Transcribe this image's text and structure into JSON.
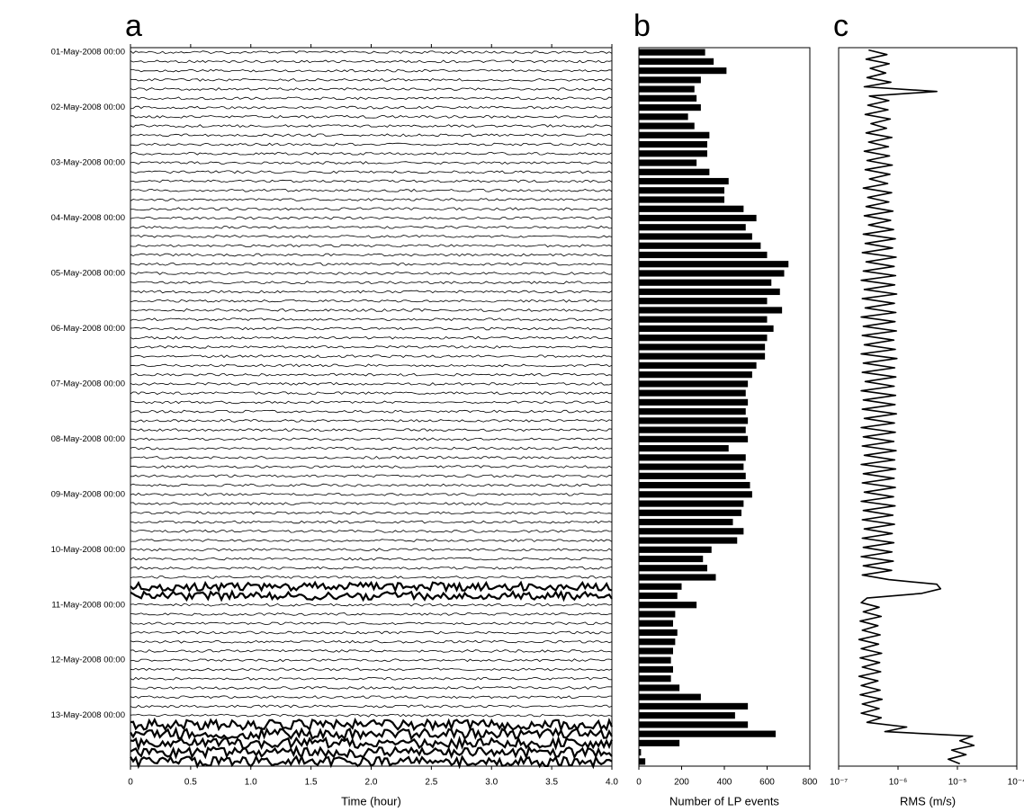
{
  "chart_data": [
    {
      "type": "helicorder",
      "panel_label": "a",
      "xlabel": "Time (hour)",
      "xlim": [
        0,
        4
      ],
      "xticks": [
        0,
        0.5,
        {
          "value": 1,
          "label": "1.0"
        },
        1.5,
        {
          "value": 2,
          "label": "2.0"
        },
        2.5,
        {
          "value": 3,
          "label": "3.0"
        },
        3.5,
        {
          "value": 4,
          "label": "4.0"
        }
      ],
      "categories": [
        "01-May-2008 00:00",
        null,
        null,
        null,
        null,
        null,
        "02-May-2008 00:00",
        null,
        null,
        null,
        null,
        null,
        "03-May-2008 00:00",
        null,
        null,
        null,
        null,
        null,
        "04-May-2008 00:00",
        null,
        null,
        null,
        null,
        null,
        "05-May-2008 00:00",
        null,
        null,
        null,
        null,
        null,
        "06-May-2008 00:00",
        null,
        null,
        null,
        null,
        null,
        "07-May-2008 00:00",
        null,
        null,
        null,
        null,
        null,
        "08-May-2008 00:00",
        null,
        null,
        null,
        null,
        null,
        "09-May-2008 00:00",
        null,
        null,
        null,
        null,
        null,
        "10-May-2008 00:00",
        null,
        null,
        null,
        null,
        null,
        "11-May-2008 00:00",
        null,
        null,
        null,
        null,
        null,
        "12-May-2008 00:00",
        null,
        null,
        null,
        null,
        null,
        "13-May-2008 00:00",
        null,
        null,
        null,
        null,
        null
      ]
    },
    {
      "type": "barh",
      "panel_label": "b",
      "xlabel": "Number of LP events",
      "color": "#000000",
      "xlim": [
        0,
        800
      ],
      "xticks": [
        0,
        200,
        400,
        600,
        800
      ],
      "values": [
        310,
        350,
        410,
        290,
        260,
        270,
        290,
        230,
        260,
        330,
        320,
        320,
        270,
        330,
        420,
        400,
        400,
        490,
        550,
        500,
        530,
        570,
        600,
        700,
        680,
        620,
        660,
        600,
        670,
        600,
        630,
        600,
        590,
        590,
        550,
        530,
        510,
        500,
        510,
        500,
        510,
        500,
        510,
        420,
        500,
        490,
        500,
        520,
        530,
        490,
        480,
        440,
        490,
        460,
        340,
        300,
        320,
        360,
        200,
        180,
        270,
        170,
        160,
        180,
        170,
        160,
        150,
        160,
        150,
        190,
        290,
        510,
        450,
        510,
        640,
        190,
        10,
        30
      ]
    },
    {
      "type": "line",
      "panel_label": "c",
      "xlabel": "RMS (m/s)",
      "color": "#000000",
      "log": true,
      "xlim": [
        1e-07,
        0.0001
      ],
      "xticks": [
        {
          "value": 1e-07,
          "label": "10⁻⁷"
        },
        {
          "value": 1e-06,
          "label": "10⁻⁶"
        },
        {
          "value": 1e-05,
          "label": "10⁻⁵"
        },
        {
          "value": 0.0001,
          "label": "10⁻⁴"
        }
      ],
      "values": [
        3.2e-07,
        6.5e-07,
        2.9e-07,
        7.1e-07,
        3.4e-07,
        6.2e-07,
        3e-07,
        7.6e-07,
        2.7e-07,
        4.5e-06,
        3.3e-07,
        7e-07,
        3.1e-07,
        6.8e-07,
        2.8e-07,
        7.4e-07,
        3.5e-07,
        6.4e-07,
        2.9e-07,
        7.9e-07,
        3.2e-07,
        6.9e-07,
        2.7e-07,
        7.2e-07,
        3e-07,
        8e-07,
        2.8e-07,
        7.3e-07,
        3.3e-07,
        6.7e-07,
        2.6e-07,
        7.8e-07,
        3.1e-07,
        7e-07,
        2.9e-07,
        8.2e-07,
        2.7e-07,
        7.5e-07,
        3.2e-07,
        8.4e-07,
        2.6e-07,
        9e-07,
        2.8e-07,
        8.1e-07,
        2.5e-07,
        9.3e-07,
        2.9e-07,
        8.6e-07,
        2.6e-07,
        9.1e-07,
        2.4e-07,
        8.8e-07,
        2.7e-07,
        9.5e-07,
        2.5e-07,
        8.7e-07,
        2.8e-07,
        9.2e-07,
        2.4e-07,
        8.9e-07,
        2.6e-07,
        9.4e-07,
        2.5e-07,
        8.5e-07,
        2.7e-07,
        9e-07,
        2.4e-07,
        9.6e-07,
        2.6e-07,
        8.8e-07,
        2.5e-07,
        9.2e-07,
        2.8e-07,
        8.6e-07,
        2.4e-07,
        9.1e-07,
        2.6e-07,
        8.9e-07,
        2.5e-07,
        9.4e-07,
        2.7e-07,
        8.7e-07,
        2.4e-07,
        9e-07,
        2.6e-07,
        8.5e-07,
        2.5e-07,
        9.3e-07,
        2.7e-07,
        8.8e-07,
        2.4e-07,
        9.1e-07,
        2.6e-07,
        8.6e-07,
        2.5e-07,
        9e-07,
        2.7e-07,
        8.4e-07,
        2.4e-07,
        8.9e-07,
        2.6e-07,
        8.2e-07,
        2.5e-07,
        8.7e-07,
        2.7e-07,
        8e-07,
        2.5e-07,
        8.5e-07,
        2.6e-07,
        7.9e-07,
        2.4e-07,
        8.3e-07,
        2.6e-07,
        7.8e-07,
        2.5e-07,
        7e-07,
        4.5e-06,
        5.2e-06,
        2.5e-06,
        3e-07,
        2.4e-07,
        4.8e-07,
        2.6e-07,
        5.2e-07,
        2.3e-07,
        4.6e-07,
        2.5e-07,
        5e-07,
        2.2e-07,
        4.7e-07,
        2.4e-07,
        5.3e-07,
        2.3e-07,
        4.9e-07,
        2.5e-07,
        5.1e-07,
        2.2e-07,
        4.6e-07,
        2.4e-07,
        5e-07,
        2.3e-07,
        5.4e-07,
        2.5e-07,
        4.8e-07,
        2.4e-07,
        5.2e-07,
        3e-07,
        1.4e-06,
        6e-07,
        1.8e-05,
        1.1e-05,
        1.9e-05,
        8e-06,
        1.4e-05,
        7e-06,
        1.1e-05
      ]
    }
  ]
}
